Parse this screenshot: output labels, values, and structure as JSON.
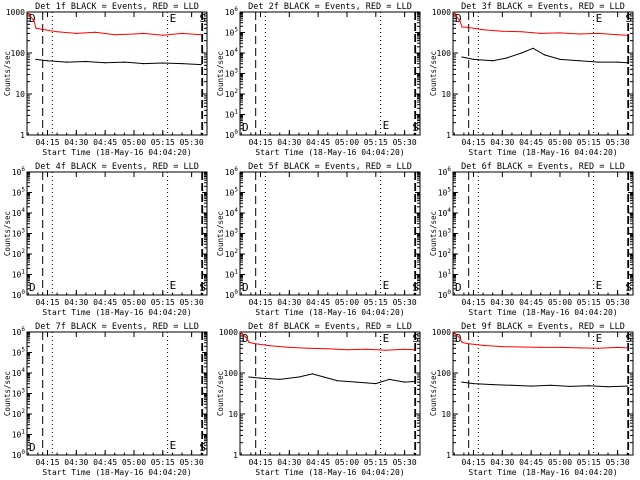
{
  "figure": {
    "xlabel": "Start Time (18-May-16 04:04:20)",
    "ylabel": "Counts/sec",
    "xticks": [
      "04:15",
      "04:30",
      "04:45",
      "05:00",
      "05:15",
      "05:30"
    ],
    "markers": [
      "D",
      "E",
      "S"
    ],
    "colors": {
      "events": "#000000",
      "lld": "#ff0000",
      "background": "#ffffff"
    }
  },
  "chart_data": [
    {
      "type": "line",
      "title": "Det 1f BLACK = Events, RED = LLD",
      "yscale": "log",
      "ylim": [
        1,
        1000
      ],
      "yticks": [
        "1",
        "10",
        "100",
        "1000"
      ],
      "x_range": [
        "04:04:20",
        "05:38:00"
      ],
      "series": [
        {
          "name": "LLD",
          "color": "#ff0000",
          "x": [
            "04:04:30",
            "04:08",
            "04:09",
            "04:12",
            "04:20",
            "04:30",
            "04:40",
            "04:50",
            "05:00",
            "05:05",
            "05:15",
            "05:25",
            "05:35"
          ],
          "values": [
            1000,
            600,
            400,
            380,
            330,
            300,
            320,
            280,
            290,
            300,
            270,
            300,
            280
          ]
        },
        {
          "name": "Events",
          "color": "#000000",
          "x": [
            "04:09",
            "04:15",
            "04:25",
            "04:35",
            "04:45",
            "04:55",
            "05:05",
            "05:15",
            "05:25",
            "05:35"
          ],
          "values": [
            70,
            65,
            60,
            62,
            58,
            60,
            55,
            57,
            55,
            52
          ]
        }
      ]
    },
    {
      "type": "line",
      "title": "Det 2f BLACK = Events, RED = LLD",
      "yscale": "log",
      "ylim": [
        1,
        1000000
      ],
      "yticks": [
        "10^0",
        "10^1",
        "10^2",
        "10^3",
        "10^4",
        "10^5",
        "10^6"
      ],
      "x_range": [
        "04:04:20",
        "05:38:00"
      ],
      "series": []
    },
    {
      "type": "line",
      "title": "Det 3f BLACK = Events, RED = LLD",
      "yscale": "log",
      "ylim": [
        1,
        1000
      ],
      "yticks": [
        "1",
        "10",
        "100",
        "1000"
      ],
      "x_range": [
        "04:04:20",
        "05:38:00"
      ],
      "series": [
        {
          "name": "LLD",
          "color": "#ff0000",
          "x": [
            "04:04:30",
            "04:08",
            "04:09",
            "04:12",
            "04:20",
            "04:30",
            "04:40",
            "04:50",
            "05:00",
            "05:10",
            "05:20",
            "05:30",
            "05:35"
          ],
          "values": [
            1000,
            600,
            430,
            420,
            370,
            340,
            330,
            300,
            310,
            290,
            300,
            280,
            270
          ]
        },
        {
          "name": "Events",
          "color": "#000000",
          "x": [
            "04:09",
            "04:15",
            "04:25",
            "04:32",
            "04:40",
            "04:46",
            "04:52",
            "05:00",
            "05:10",
            "05:20",
            "05:30",
            "05:35"
          ],
          "values": [
            80,
            70,
            65,
            75,
            100,
            130,
            90,
            70,
            65,
            60,
            60,
            58
          ]
        }
      ]
    },
    {
      "type": "line",
      "title": "Det 4f BLACK = Events, RED = LLD",
      "yscale": "log",
      "ylim": [
        1,
        1000000
      ],
      "yticks": [
        "10^0",
        "10^1",
        "10^2",
        "10^3",
        "10^4",
        "10^5",
        "10^6"
      ],
      "x_range": [
        "04:04:20",
        "05:38:00"
      ],
      "series": []
    },
    {
      "type": "line",
      "title": "Det 5f BLACK = Events, RED = LLD",
      "yscale": "log",
      "ylim": [
        1,
        1000000
      ],
      "yticks": [
        "10^0",
        "10^1",
        "10^2",
        "10^3",
        "10^4",
        "10^5",
        "10^6"
      ],
      "x_range": [
        "04:04:20",
        "05:38:00"
      ],
      "series": []
    },
    {
      "type": "line",
      "title": "Det 6f BLACK = Events, RED = LLD",
      "yscale": "log",
      "ylim": [
        1,
        1000000
      ],
      "yticks": [
        "10^0",
        "10^1",
        "10^2",
        "10^3",
        "10^4",
        "10^5",
        "10^6"
      ],
      "x_range": [
        "04:04:20",
        "05:38:00"
      ],
      "series": []
    },
    {
      "type": "line",
      "title": "Det 7f BLACK = Events, RED = LLD",
      "yscale": "log",
      "ylim": [
        1,
        1000000
      ],
      "yticks": [
        "10^0",
        "10^1",
        "10^2",
        "10^3",
        "10^4",
        "10^5",
        "10^6"
      ],
      "x_range": [
        "04:04:20",
        "05:38:00"
      ],
      "series": []
    },
    {
      "type": "line",
      "title": "Det 8f BLACK = Events, RED = LLD",
      "yscale": "log",
      "ylim": [
        1,
        1000
      ],
      "yticks": [
        "1",
        "10",
        "100",
        "1000"
      ],
      "x_range": [
        "04:04:20",
        "05:38:00"
      ],
      "series": [
        {
          "name": "LLD",
          "color": "#ff0000",
          "x": [
            "04:04:30",
            "04:08",
            "04:09",
            "04:12",
            "04:20",
            "04:30",
            "04:40",
            "04:50",
            "05:00",
            "05:10",
            "05:20",
            "05:30",
            "05:35"
          ],
          "values": [
            1000,
            700,
            560,
            520,
            460,
            420,
            400,
            390,
            370,
            380,
            360,
            380,
            370
          ]
        },
        {
          "name": "Events",
          "color": "#000000",
          "x": [
            "04:09",
            "04:15",
            "04:25",
            "04:35",
            "04:42",
            "04:48",
            "04:55",
            "05:05",
            "05:15",
            "05:22",
            "05:30",
            "05:35"
          ],
          "values": [
            80,
            75,
            70,
            80,
            95,
            80,
            65,
            60,
            55,
            70,
            60,
            62
          ]
        }
      ]
    },
    {
      "type": "line",
      "title": "Det 9f BLACK = Events, RED = LLD",
      "yscale": "log",
      "ylim": [
        1,
        1000
      ],
      "yticks": [
        "1",
        "10",
        "100",
        "1000"
      ],
      "x_range": [
        "04:04:20",
        "05:38:00"
      ],
      "series": [
        {
          "name": "LLD",
          "color": "#ff0000",
          "x": [
            "04:04:30",
            "04:08",
            "04:09",
            "04:12",
            "04:20",
            "04:30",
            "04:40",
            "04:50",
            "05:00",
            "05:10",
            "05:20",
            "05:30",
            "05:35"
          ],
          "values": [
            1000,
            700,
            560,
            520,
            470,
            440,
            430,
            420,
            420,
            410,
            400,
            420,
            410
          ]
        },
        {
          "name": "Events",
          "color": "#000000",
          "x": [
            "04:09",
            "04:15",
            "04:25",
            "04:35",
            "04:45",
            "04:55",
            "05:05",
            "05:15",
            "05:25",
            "05:35"
          ],
          "values": [
            60,
            55,
            52,
            50,
            48,
            50,
            47,
            49,
            46,
            48
          ]
        }
      ]
    }
  ]
}
